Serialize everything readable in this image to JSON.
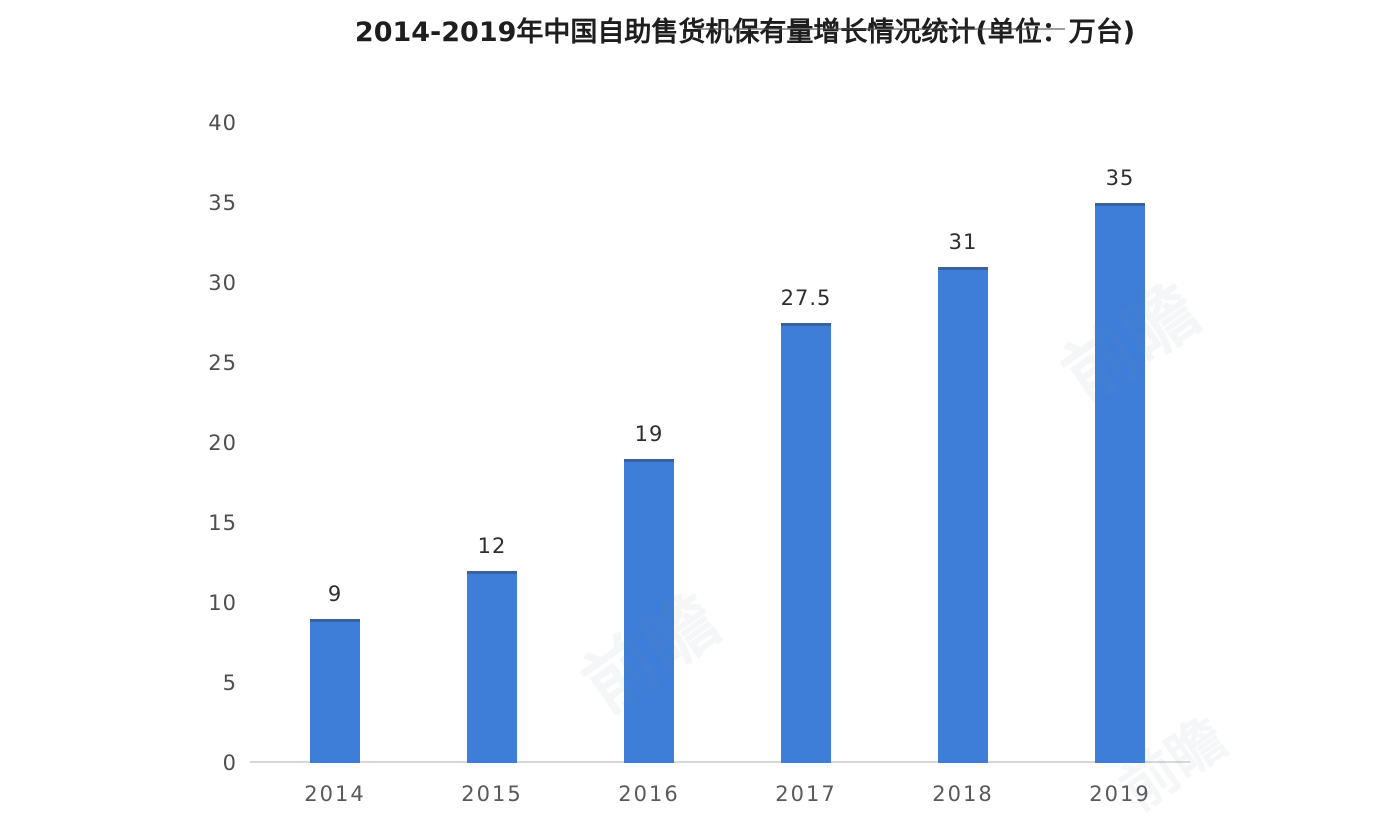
{
  "chart_data": {
    "type": "bar",
    "title": "2014-2019年中国自助售货机保有量增长情况统计(单位：万台)",
    "categories": [
      "2014",
      "2015",
      "2016",
      "2017",
      "2018",
      "2019"
    ],
    "values": [
      9,
      12,
      19,
      27.5,
      31,
      35
    ],
    "labels": [
      "9",
      "12",
      "19",
      "27.5",
      "31",
      "35"
    ],
    "xlabel": "",
    "ylabel": "",
    "ylim": [
      0,
      40
    ],
    "yticks": [
      0,
      5,
      10,
      15,
      20,
      25,
      30,
      35,
      40
    ],
    "bar_color": "#3e7ed8",
    "grid": false,
    "legend": false,
    "axis_line_color": "#d8d8d8"
  },
  "watermark": {
    "text": "前瞻"
  }
}
